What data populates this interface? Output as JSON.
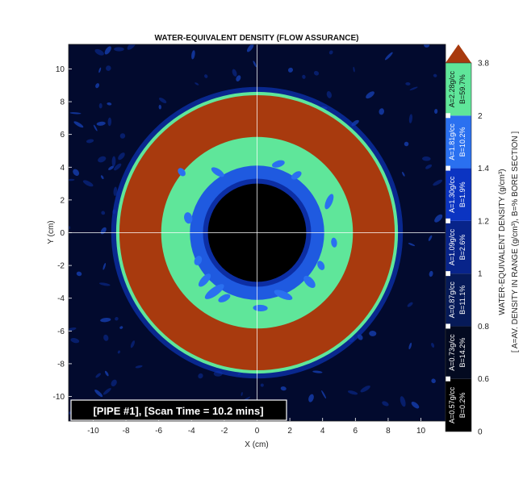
{
  "chart_data": {
    "type": "heatmap",
    "title": "WATER-EQUIVALENT DENSITY (FLOW ASSURANCE)",
    "xlabel": "X (cm)",
    "ylabel": "Y (cm)",
    "xlim": [
      -11.5,
      11.5
    ],
    "ylim": [
      -11.5,
      11.5
    ],
    "xticks": [
      -10,
      -8,
      -6,
      -4,
      -2,
      0,
      2,
      4,
      6,
      8,
      10
    ],
    "yticks": [
      -10,
      -8,
      -6,
      -4,
      -2,
      0,
      2,
      4,
      6,
      8,
      10
    ],
    "grid": false,
    "crosshair_at": [
      0,
      0
    ],
    "annotation": "[PIPE #1], [Scan Time = 10.2 mins]",
    "rings": [
      {
        "name": "outer-rim",
        "radius_cm": 8.6,
        "color": "#5fe69a"
      },
      {
        "name": "pipe-wall",
        "radius_cm": 8.4,
        "color": "#a83a0e"
      },
      {
        "name": "deposit-outer",
        "radius_cm": 5.85,
        "color": "#5fe69a"
      },
      {
        "name": "deposit-inner",
        "radius_cm": 4.1,
        "color": "#1f5ae0"
      },
      {
        "name": "bore-edge",
        "radius_cm": 3.3,
        "color": "#0c2ea4"
      },
      {
        "name": "bore",
        "radius_cm": 3.0,
        "color": "#000000"
      }
    ],
    "colorbar": {
      "title": "WATER-EQUIVALENT DENSITY (g/cm³)",
      "subtitle": "[ A=AV. DENSITY IN RANGE (g/cm³), B=% BORE SECTION ]",
      "tick_labels": [
        "0",
        "0.6",
        "0.8",
        "1",
        "1.2",
        "1.4",
        "2",
        "3.8"
      ],
      "bands": [
        {
          "from": 0,
          "to": 0.6,
          "color": "#000000",
          "label_a": "A=0.57g/cc",
          "label_b": "B=0.2%"
        },
        {
          "from": 0.6,
          "to": 0.8,
          "color": "#030a20",
          "label_a": "A=0.73g/cc",
          "label_b": "B=14.2%"
        },
        {
          "from": 0.8,
          "to": 1.0,
          "color": "#061a58",
          "label_a": "A=0.87g/cc",
          "label_b": "B=11.1%"
        },
        {
          "from": 1.0,
          "to": 1.2,
          "color": "#08248a",
          "label_a": "A=1.09g/cc",
          "label_b": "B=2.6%"
        },
        {
          "from": 1.2,
          "to": 1.4,
          "color": "#0b34c2",
          "label_a": "A=1.30g/cc",
          "label_b": "B=1.9%"
        },
        {
          "from": 1.4,
          "to": 2.0,
          "color": "#2a70f0",
          "label_a": "A=1.81g/cc",
          "label_b": "B=10.2%"
        },
        {
          "from": 2.0,
          "to": 3.8,
          "color": "#5fe69a",
          "label_a": "A=2.28g/cc",
          "label_b": "B=59.7%"
        }
      ],
      "over_color": "#a83a0e"
    }
  }
}
